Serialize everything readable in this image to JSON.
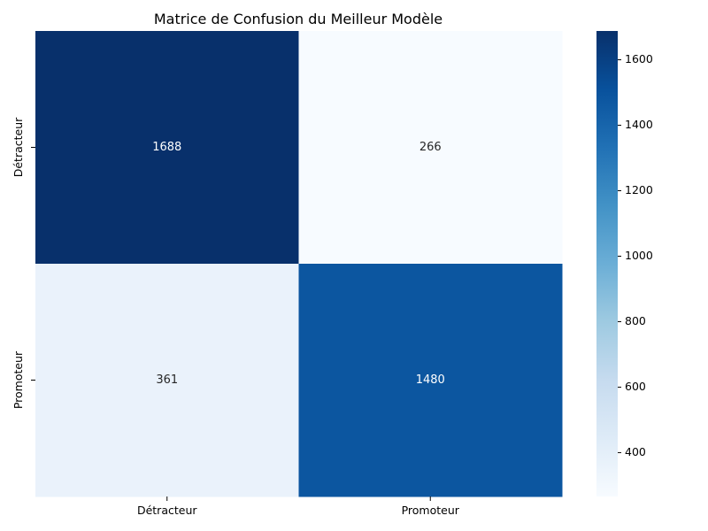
{
  "chart_data": {
    "type": "heatmap",
    "title": "Matrice de Confusion du Meilleur Modèle",
    "xlabel": "",
    "ylabel": "",
    "x_categories": [
      "Détracteur",
      "Promoteur"
    ],
    "y_categories": [
      "Détracteur",
      "Promoteur"
    ],
    "values": [
      [
        1688,
        266
      ],
      [
        361,
        1480
      ]
    ],
    "cell_labels": [
      [
        "1688",
        "266"
      ],
      [
        "361",
        "1480"
      ]
    ],
    "colormap": "Blues",
    "colorbar": {
      "range": [
        266,
        1688
      ],
      "ticks": [
        400,
        600,
        800,
        1000,
        1200,
        1400,
        1600
      ],
      "tick_labels": [
        "400",
        "600",
        "800",
        "1000",
        "1200",
        "1400",
        "1600"
      ]
    },
    "grid": false
  }
}
